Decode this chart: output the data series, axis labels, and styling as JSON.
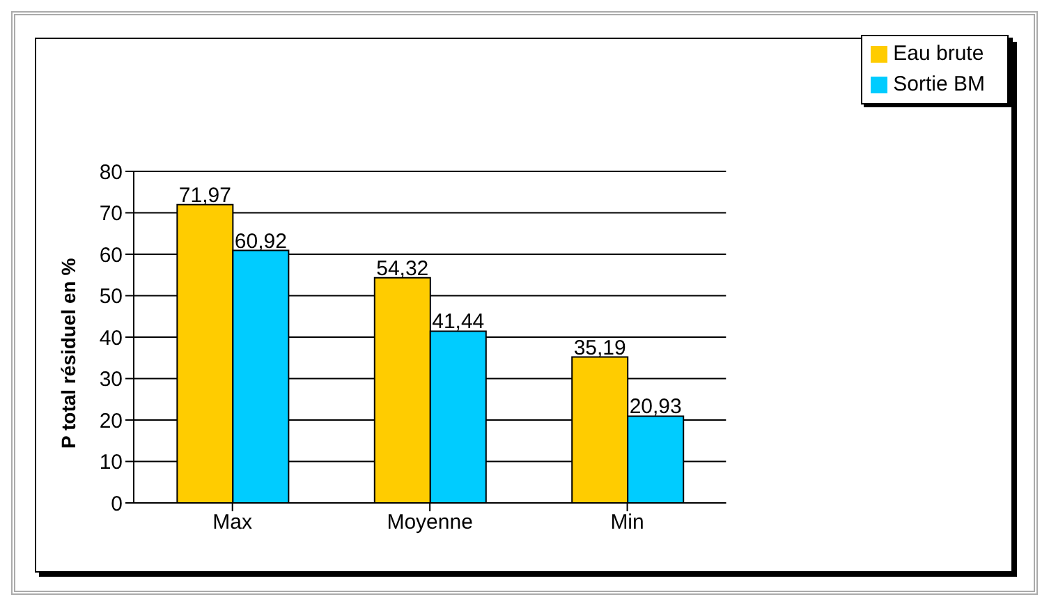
{
  "chart_data": {
    "type": "bar",
    "categories": [
      "Max",
      "Moyenne",
      "Min"
    ],
    "ylabel": "P total résiduel en %",
    "ylim": [
      0,
      80
    ],
    "yticks": [
      0,
      10,
      20,
      30,
      40,
      50,
      60,
      70,
      80
    ],
    "grid": "y",
    "legend": "top right",
    "series": [
      {
        "name": "Eau brute",
        "color": "#ffcc00",
        "values": [
          71.97,
          54.32,
          35.19
        ],
        "value_labels": [
          "71,97",
          "54,32",
          "35,19"
        ]
      },
      {
        "name": "Sortie BM",
        "color": "#00ccff",
        "values": [
          60.92,
          41.44,
          20.93
        ],
        "value_labels": [
          "60,92",
          "41,44",
          "20,93"
        ]
      }
    ]
  }
}
